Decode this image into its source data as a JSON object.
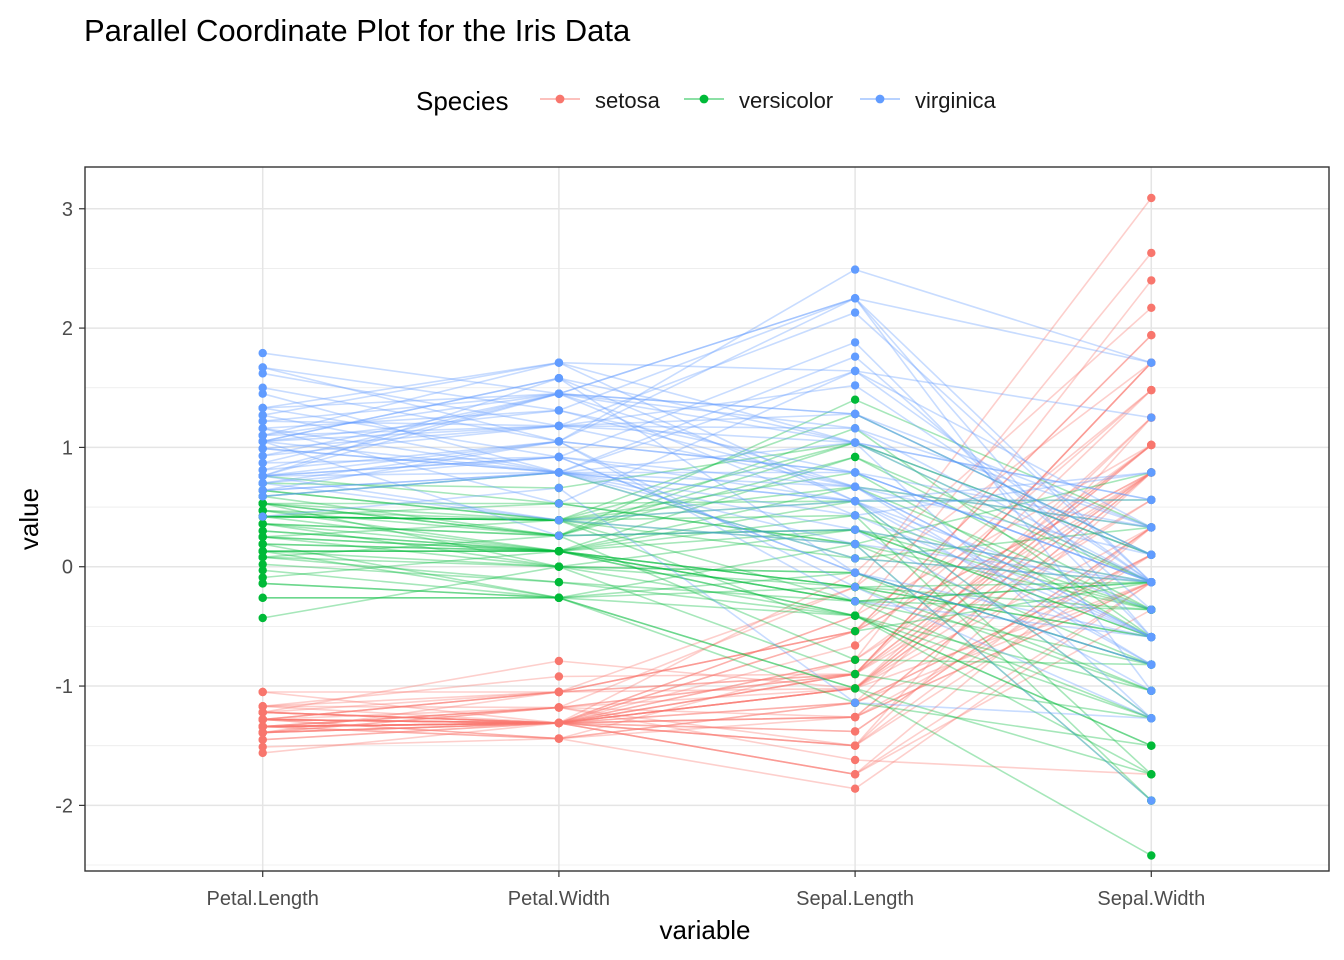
{
  "chart_data": {
    "type": "line",
    "title": "Parallel Coordinate Plot for the Iris Data",
    "xlabel": "variable",
    "ylabel": "value",
    "categories": [
      "Petal.Length",
      "Petal.Width",
      "Sepal.Length",
      "Sepal.Width"
    ],
    "ylim": [
      -2.55,
      3.35
    ],
    "y_ticks": [
      "-2",
      "-1",
      "0",
      "1",
      "2",
      "3"
    ],
    "y_tick_values": [
      -2,
      -1,
      0,
      1,
      2,
      3
    ],
    "grid": true,
    "legend": {
      "title": "Species",
      "position": "top"
    },
    "series": [
      {
        "name": "setosa",
        "color": "#F8766D",
        "lines": [
          [
            -1.34,
            -1.31,
            -0.9,
            1.02
          ],
          [
            -1.34,
            -1.31,
            -1.14,
            -0.13
          ],
          [
            -1.39,
            -1.31,
            -1.38,
            0.33
          ],
          [
            -1.28,
            -1.31,
            -1.5,
            0.1
          ],
          [
            -1.34,
            -1.31,
            -1.02,
            1.25
          ],
          [
            -1.17,
            -1.05,
            -0.54,
            1.94
          ],
          [
            -1.34,
            -1.18,
            -1.5,
            0.79
          ],
          [
            -1.28,
            -1.31,
            -1.02,
            0.79
          ],
          [
            -1.34,
            -1.31,
            -1.74,
            -0.36
          ],
          [
            -1.28,
            -1.44,
            -1.14,
            0.1
          ],
          [
            -1.28,
            -1.31,
            -0.54,
            1.48
          ],
          [
            -1.22,
            -1.31,
            -1.26,
            0.79
          ],
          [
            -1.34,
            -1.44,
            -1.26,
            -0.13
          ],
          [
            -1.51,
            -1.44,
            -1.86,
            -0.13
          ],
          [
            -1.45,
            -1.31,
            -0.05,
            2.17
          ],
          [
            -1.28,
            -1.05,
            -0.17,
            3.09
          ],
          [
            -1.39,
            -1.05,
            -0.54,
            1.94
          ],
          [
            -1.34,
            -1.18,
            -0.9,
            1.02
          ],
          [
            -1.17,
            -1.18,
            -0.17,
            1.71
          ],
          [
            -1.28,
            -1.18,
            -0.9,
            1.71
          ],
          [
            -1.17,
            -1.31,
            -0.54,
            0.79
          ],
          [
            -1.28,
            -1.05,
            -0.9,
            1.48
          ],
          [
            -1.56,
            -1.31,
            -1.5,
            1.25
          ],
          [
            -1.17,
            -0.92,
            -0.9,
            0.56
          ],
          [
            -1.05,
            -1.31,
            -1.26,
            0.79
          ],
          [
            -1.22,
            -1.31,
            -1.02,
            -0.13
          ],
          [
            -1.22,
            -1.05,
            -1.02,
            0.79
          ],
          [
            -1.28,
            -1.31,
            -0.78,
            1.02
          ],
          [
            -1.34,
            -1.31,
            -0.78,
            0.79
          ],
          [
            -1.22,
            -1.31,
            -1.38,
            0.33
          ],
          [
            -1.22,
            -1.31,
            -1.26,
            0.1
          ],
          [
            -1.28,
            -1.05,
            -0.54,
            0.79
          ],
          [
            -1.28,
            -1.44,
            -0.78,
            2.4
          ],
          [
            -1.34,
            -1.31,
            -0.41,
            2.63
          ],
          [
            -1.28,
            -1.31,
            -1.14,
            0.1
          ],
          [
            -1.45,
            -1.31,
            -1.02,
            0.33
          ],
          [
            -1.39,
            -1.31,
            -0.41,
            1.02
          ],
          [
            -1.34,
            -1.44,
            -1.14,
            1.25
          ],
          [
            -1.39,
            -1.31,
            -1.74,
            -0.13
          ],
          [
            -1.28,
            -1.31,
            -0.9,
            0.79
          ],
          [
            -1.39,
            -1.18,
            -1.02,
            1.02
          ],
          [
            -1.39,
            -1.18,
            -1.62,
            -1.74
          ],
          [
            -1.39,
            -1.31,
            -1.74,
            0.33
          ],
          [
            -1.22,
            -0.79,
            -1.02,
            1.02
          ],
          [
            -1.05,
            -1.05,
            -0.9,
            1.71
          ],
          [
            -1.34,
            -1.18,
            -1.26,
            -0.13
          ],
          [
            -1.22,
            -1.31,
            -0.9,
            1.71
          ],
          [
            -1.34,
            -1.31,
            -1.5,
            0.33
          ],
          [
            -1.28,
            -1.31,
            -0.66,
            1.48
          ],
          [
            -1.34,
            -1.31,
            -1.02,
            0.56
          ]
        ]
      },
      {
        "name": "versicolor",
        "color": "#00BA38",
        "lines": [
          [
            0.53,
            0.26,
            1.4,
            0.33
          ],
          [
            0.42,
            0.39,
            0.67,
            0.33
          ],
          [
            0.64,
            0.39,
            1.28,
            0.1
          ],
          [
            0.13,
            0.13,
            -0.41,
            -1.74
          ],
          [
            0.47,
            0.39,
            0.79,
            -0.59
          ],
          [
            0.42,
            0.13,
            -0.17,
            -0.59
          ],
          [
            0.53,
            0.53,
            0.55,
            0.56
          ],
          [
            -0.26,
            -0.26,
            -1.14,
            -1.5
          ],
          [
            0.47,
            0.13,
            0.92,
            -0.36
          ],
          [
            0.08,
            0.26,
            -0.78,
            -0.82
          ],
          [
            -0.14,
            -0.26,
            -1.02,
            -2.42
          ],
          [
            0.25,
            0.39,
            0.07,
            -0.13
          ],
          [
            0.13,
            -0.26,
            0.19,
            -1.96
          ],
          [
            0.53,
            0.26,
            0.31,
            -0.36
          ],
          [
            -0.09,
            0.13,
            -0.29,
            -0.36
          ],
          [
            0.36,
            0.26,
            1.04,
            0.1
          ],
          [
            0.42,
            0.39,
            -0.29,
            -0.13
          ],
          [
            0.19,
            -0.26,
            -0.05,
            -0.82
          ],
          [
            0.42,
            0.39,
            0.43,
            -1.96
          ],
          [
            0.08,
            -0.13,
            -0.29,
            -1.27
          ],
          [
            0.59,
            0.79,
            0.07,
            0.33
          ],
          [
            0.13,
            0.13,
            0.31,
            -0.59
          ],
          [
            0.64,
            0.39,
            0.55,
            -1.27
          ],
          [
            0.53,
            0.0,
            0.31,
            -0.59
          ],
          [
            0.3,
            0.13,
            0.67,
            -0.36
          ],
          [
            0.36,
            0.26,
            0.92,
            -0.13
          ],
          [
            0.59,
            0.26,
            1.16,
            -0.59
          ],
          [
            0.7,
            0.66,
            1.04,
            -0.13
          ],
          [
            0.42,
            0.39,
            0.19,
            -0.36
          ],
          [
            -0.14,
            -0.26,
            -0.17,
            -1.04
          ],
          [
            0.02,
            -0.13,
            -0.41,
            -1.5
          ],
          [
            -0.03,
            -0.26,
            -0.41,
            -1.5
          ],
          [
            0.08,
            0.0,
            -0.05,
            -0.82
          ],
          [
            0.76,
            0.53,
            0.19,
            -0.82
          ],
          [
            0.42,
            0.39,
            -0.54,
            -0.13
          ],
          [
            0.42,
            0.53,
            0.19,
            0.79
          ],
          [
            0.53,
            0.39,
            1.04,
            0.1
          ],
          [
            0.36,
            0.13,
            0.55,
            -1.74
          ],
          [
            0.19,
            0.13,
            -0.29,
            -0.13
          ],
          [
            0.13,
            0.13,
            -0.41,
            -1.27
          ],
          [
            0.36,
            0.0,
            -0.41,
            -1.04
          ],
          [
            0.47,
            0.26,
            0.31,
            -0.13
          ],
          [
            0.13,
            0.0,
            -0.05,
            -1.04
          ],
          [
            -0.26,
            -0.26,
            -1.02,
            -1.74
          ],
          [
            0.25,
            0.13,
            -0.29,
            -0.82
          ],
          [
            0.25,
            0.0,
            -0.17,
            -0.13
          ],
          [
            0.25,
            0.13,
            -0.17,
            -0.36
          ],
          [
            0.3,
            0.13,
            0.43,
            -0.36
          ],
          [
            -0.43,
            0.0,
            -0.9,
            -1.27
          ],
          [
            0.19,
            0.13,
            -0.17,
            -0.59
          ]
        ]
      },
      {
        "name": "virginica",
        "color": "#619CFF",
        "lines": [
          [
            1.27,
            1.71,
            0.55,
            0.56
          ],
          [
            0.76,
            0.92,
            -0.05,
            -0.82
          ],
          [
            1.22,
            1.18,
            1.52,
            -0.13
          ],
          [
            1.05,
            0.79,
            0.55,
            -0.36
          ],
          [
            1.16,
            1.31,
            0.79,
            -0.13
          ],
          [
            1.62,
            1.18,
            2.13,
            -0.13
          ],
          [
            0.42,
            0.66,
            -1.14,
            -1.27
          ],
          [
            1.45,
            0.79,
            1.76,
            -0.36
          ],
          [
            1.16,
            0.79,
            1.04,
            -1.27
          ],
          [
            1.33,
            1.71,
            1.64,
            1.25
          ],
          [
            0.76,
            1.05,
            0.79,
            0.33
          ],
          [
            0.87,
            0.92,
            0.67,
            -0.82
          ],
          [
            0.99,
            1.18,
            1.16,
            -0.13
          ],
          [
            0.7,
            1.05,
            -0.17,
            -1.27
          ],
          [
            0.76,
            1.58,
            -0.05,
            -0.59
          ],
          [
            0.87,
            1.45,
            0.67,
            0.33
          ],
          [
            0.99,
            0.79,
            0.79,
            -0.13
          ],
          [
            1.67,
            1.31,
            2.25,
            1.71
          ],
          [
            1.79,
            1.45,
            2.25,
            -1.04
          ],
          [
            0.7,
            0.39,
            0.19,
            -1.96
          ],
          [
            1.1,
            1.45,
            1.28,
            0.33
          ],
          [
            0.64,
            1.05,
            -0.29,
            -0.59
          ],
          [
            1.67,
            1.05,
            2.25,
            -0.59
          ],
          [
            0.64,
            0.79,
            0.55,
            -0.82
          ],
          [
            1.1,
            1.18,
            1.04,
            0.56
          ],
          [
            1.27,
            0.79,
            1.64,
            0.33
          ],
          [
            0.59,
            0.79,
            0.43,
            -0.59
          ],
          [
            0.64,
            0.79,
            0.31,
            -0.13
          ],
          [
            1.05,
            1.18,
            0.67,
            -0.59
          ],
          [
            1.16,
            0.53,
            1.64,
            -0.13
          ],
          [
            1.33,
            0.92,
            1.88,
            -0.59
          ],
          [
            1.5,
            1.05,
            2.49,
            1.71
          ],
          [
            1.05,
            1.31,
            0.67,
            -0.59
          ],
          [
            0.76,
            0.39,
            0.55,
            -0.59
          ],
          [
            1.05,
            0.26,
            0.31,
            -1.04
          ],
          [
            1.33,
            1.45,
            2.25,
            -0.13
          ],
          [
            1.05,
            1.58,
            0.55,
            0.79
          ],
          [
            0.99,
            0.79,
            0.67,
            0.1
          ],
          [
            0.59,
            0.79,
            0.19,
            -0.13
          ],
          [
            0.93,
            1.18,
            1.28,
            0.1
          ],
          [
            1.05,
            1.58,
            1.04,
            0.1
          ],
          [
            0.76,
            1.45,
            1.28,
            0.1
          ],
          [
            0.76,
            0.92,
            -0.05,
            -0.82
          ],
          [
            1.22,
            1.45,
            1.16,
            0.33
          ],
          [
            1.1,
            1.71,
            1.04,
            0.56
          ],
          [
            0.81,
            1.45,
            1.04,
            -0.13
          ],
          [
            0.7,
            0.92,
            0.55,
            -1.27
          ],
          [
            0.81,
            1.05,
            0.79,
            -0.13
          ],
          [
            0.93,
            1.45,
            0.43,
            0.79
          ],
          [
            0.76,
            0.79,
            0.07,
            -0.13
          ]
        ]
      }
    ]
  }
}
